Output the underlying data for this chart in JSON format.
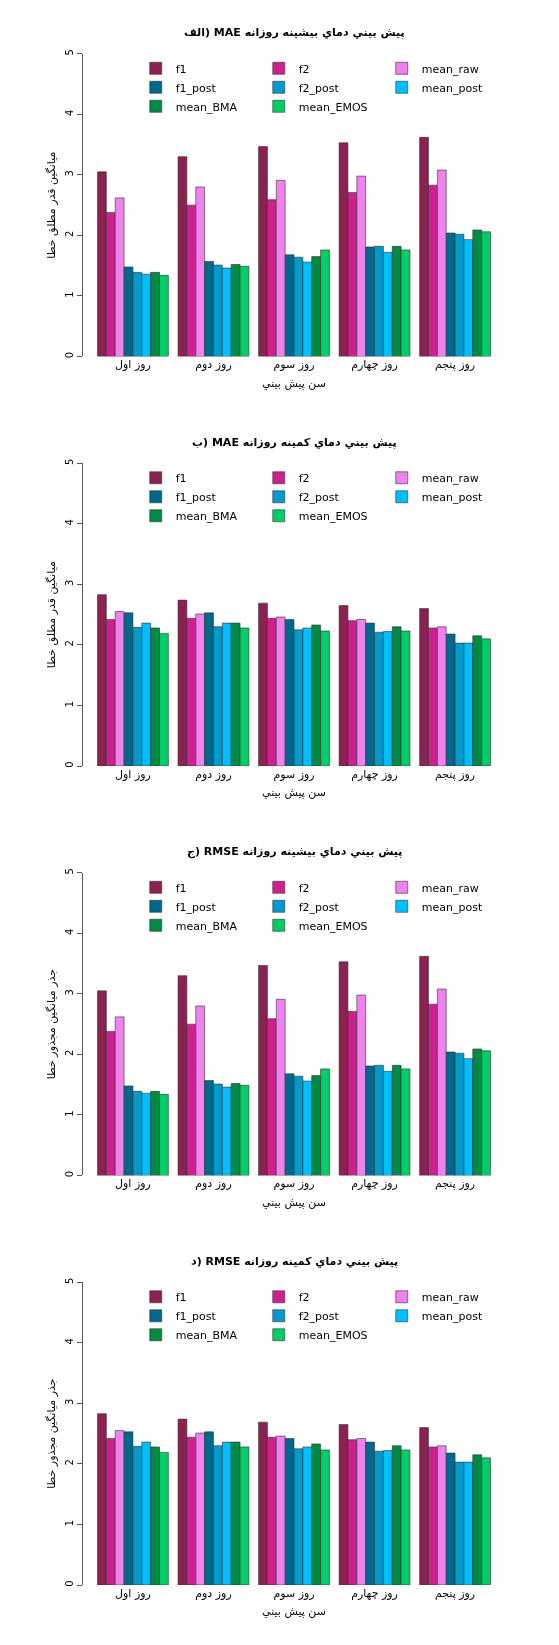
{
  "chart_data": [
    {
      "type": "bar",
      "grid": false,
      "title": "الف) MAE پيش بيني دماي بيشينه روزانه",
      "xlabel": "سن پيش بيني",
      "ylabel": "ميانگين قدر مطلق خطا",
      "categories": [
        "روز اول",
        "روز دوم",
        "روز سوم",
        "روز چهارم",
        "روز پنجم"
      ],
      "ylim": [
        0,
        5
      ],
      "yticks": [
        0,
        1,
        2,
        3,
        4,
        5
      ],
      "legend": "top",
      "series": [
        {
          "name": "f1",
          "color": "#8b2252",
          "values": [
            3.05,
            3.3,
            3.47,
            3.53,
            3.62
          ]
        },
        {
          "name": "f2",
          "color": "#d02090",
          "values": [
            2.38,
            2.5,
            2.59,
            2.71,
            2.83
          ]
        },
        {
          "name": "mean_raw",
          "color": "#ee82ee",
          "values": [
            2.62,
            2.8,
            2.91,
            2.98,
            3.08
          ]
        },
        {
          "name": "f1_post",
          "color": "#00688b",
          "values": [
            1.48,
            1.57,
            1.68,
            1.81,
            2.04
          ]
        },
        {
          "name": "f2_post",
          "color": "#009acd",
          "values": [
            1.39,
            1.51,
            1.64,
            1.82,
            2.02
          ]
        },
        {
          "name": "mean_post",
          "color": "#00bfff",
          "values": [
            1.36,
            1.46,
            1.56,
            1.72,
            1.93
          ]
        },
        {
          "name": "mean_BMA",
          "color": "#008b45",
          "values": [
            1.39,
            1.52,
            1.65,
            1.82,
            2.09
          ]
        },
        {
          "name": "mean_EMOS",
          "color": "#00cd66",
          "values": [
            1.34,
            1.49,
            1.76,
            1.76,
            2.06
          ]
        }
      ]
    },
    {
      "type": "bar",
      "grid": false,
      "title": "ب) MAE پيش بيني دماي کمينه روزانه",
      "xlabel": "سن پيش بيني",
      "ylabel": "ميانگين قدر مطلق خطا",
      "categories": [
        "روز اول",
        "روز دوم",
        "روز سوم",
        "روز چهارم",
        "روز پنجم"
      ],
      "ylim": [
        0,
        5
      ],
      "yticks": [
        0,
        1,
        2,
        3,
        4,
        5
      ],
      "legend": "top",
      "series": [
        {
          "name": "f1",
          "color": "#8b2252",
          "values": [
            2.83,
            2.74,
            2.69,
            2.65,
            2.6
          ]
        },
        {
          "name": "f2",
          "color": "#d02090",
          "values": [
            2.42,
            2.44,
            2.44,
            2.4,
            2.28
          ]
        },
        {
          "name": "mean_raw",
          "color": "#ee82ee",
          "values": [
            2.55,
            2.51,
            2.46,
            2.42,
            2.3
          ]
        },
        {
          "name": "f1_post",
          "color": "#00688b",
          "values": [
            2.53,
            2.53,
            2.42,
            2.36,
            2.18
          ]
        },
        {
          "name": "f2_post",
          "color": "#009acd",
          "values": [
            2.29,
            2.3,
            2.25,
            2.21,
            2.03
          ]
        },
        {
          "name": "mean_post",
          "color": "#00bfff",
          "values": [
            2.36,
            2.36,
            2.28,
            2.22,
            2.03
          ]
        },
        {
          "name": "mean_BMA",
          "color": "#008b45",
          "values": [
            2.28,
            2.36,
            2.33,
            2.3,
            2.15
          ]
        },
        {
          "name": "mean_EMOS",
          "color": "#00cd66",
          "values": [
            2.19,
            2.28,
            2.23,
            2.23,
            2.1
          ]
        }
      ]
    },
    {
      "type": "bar",
      "grid": false,
      "title": "ج) RMSE پيش بيني دماي بيشينه روزانه",
      "xlabel": "سن پيش بيني",
      "ylabel": "جذر ميانگين مجذور خطا",
      "categories": [
        "روز اول",
        "روز دوم",
        "روز سوم",
        "روز چهارم",
        "روز پنجم"
      ],
      "ylim": [
        0,
        5
      ],
      "yticks": [
        0,
        1,
        2,
        3,
        4,
        5
      ],
      "legend": "top",
      "series": [
        {
          "name": "f1",
          "color": "#8b2252",
          "values": [
            3.05,
            3.3,
            3.47,
            3.53,
            3.62
          ]
        },
        {
          "name": "f2",
          "color": "#d02090",
          "values": [
            2.38,
            2.5,
            2.59,
            2.71,
            2.83
          ]
        },
        {
          "name": "mean_raw",
          "color": "#ee82ee",
          "values": [
            2.62,
            2.8,
            2.91,
            2.98,
            3.08
          ]
        },
        {
          "name": "f1_post",
          "color": "#00688b",
          "values": [
            1.48,
            1.57,
            1.68,
            1.81,
            2.04
          ]
        },
        {
          "name": "f2_post",
          "color": "#009acd",
          "values": [
            1.39,
            1.51,
            1.64,
            1.82,
            2.02
          ]
        },
        {
          "name": "mean_post",
          "color": "#00bfff",
          "values": [
            1.36,
            1.46,
            1.56,
            1.72,
            1.93
          ]
        },
        {
          "name": "mean_BMA",
          "color": "#008b45",
          "values": [
            1.39,
            1.52,
            1.65,
            1.82,
            2.09
          ]
        },
        {
          "name": "mean_EMOS",
          "color": "#00cd66",
          "values": [
            1.34,
            1.49,
            1.76,
            1.76,
            2.06
          ]
        }
      ]
    },
    {
      "type": "bar",
      "grid": false,
      "title": "د) RMSE پيش بيني دماي کمينه روزانه",
      "xlabel": "سن پيش بيني",
      "ylabel": "جذر ميانگين مجذور خطا",
      "categories": [
        "روز اول",
        "روز دوم",
        "روز سوم",
        "روز چهارم",
        "روز پنجم"
      ],
      "ylim": [
        0,
        5
      ],
      "yticks": [
        0,
        1,
        2,
        3,
        4,
        5
      ],
      "legend": "top",
      "series": [
        {
          "name": "f1",
          "color": "#8b2252",
          "values": [
            2.83,
            2.74,
            2.69,
            2.65,
            2.6
          ]
        },
        {
          "name": "f2",
          "color": "#d02090",
          "values": [
            2.42,
            2.44,
            2.44,
            2.4,
            2.28
          ]
        },
        {
          "name": "mean_raw",
          "color": "#ee82ee",
          "values": [
            2.55,
            2.51,
            2.46,
            2.42,
            2.3
          ]
        },
        {
          "name": "f1_post",
          "color": "#00688b",
          "values": [
            2.53,
            2.53,
            2.42,
            2.36,
            2.18
          ]
        },
        {
          "name": "f2_post",
          "color": "#009acd",
          "values": [
            2.29,
            2.3,
            2.25,
            2.21,
            2.03
          ]
        },
        {
          "name": "mean_post",
          "color": "#00bfff",
          "values": [
            2.36,
            2.36,
            2.28,
            2.22,
            2.03
          ]
        },
        {
          "name": "mean_BMA",
          "color": "#008b45",
          "values": [
            2.28,
            2.36,
            2.33,
            2.3,
            2.15
          ]
        },
        {
          "name": "mean_EMOS",
          "color": "#00cd66",
          "values": [
            2.19,
            2.28,
            2.23,
            2.23,
            2.1
          ]
        }
      ]
    }
  ]
}
